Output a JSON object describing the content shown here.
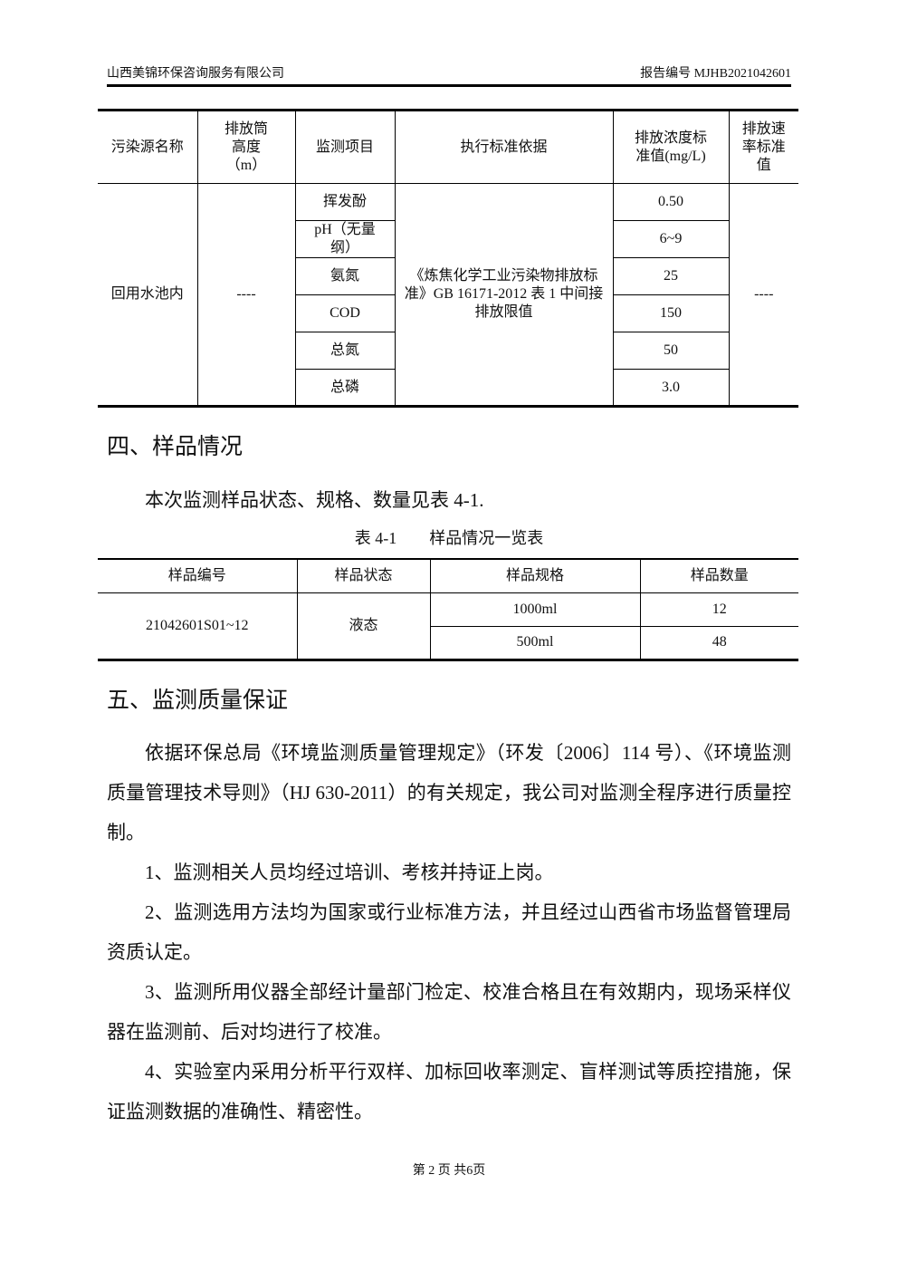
{
  "header": {
    "company": "山西美锦环保咨询服务有限公司",
    "report_no": "报告编号 MJHB2021042601"
  },
  "table1": {
    "headers": [
      "污染源名称",
      "排放筒高度（m）",
      "监测项目",
      "执行标准依据",
      "排放浓度标准值(mg/L)",
      "排放速率标准值"
    ],
    "source": "回用水池内",
    "height": "----",
    "standard": "《炼焦化学工业污染物排放标准》GB 16171-2012 表 1 中间接排放限值",
    "rate": "----",
    "rows": [
      {
        "item": "挥发酚",
        "value": "0.50"
      },
      {
        "item": "pH（无量纲）",
        "value": "6~9"
      },
      {
        "item": "氨氮",
        "value": "25"
      },
      {
        "item": "COD",
        "value": "150"
      },
      {
        "item": "总氮",
        "value": "50"
      },
      {
        "item": "总磷",
        "value": "3.0"
      }
    ]
  },
  "section4": {
    "title": "四、样品情况",
    "text": "本次监测样品状态、规格、数量见表 4-1.",
    "caption": "表 4-1　　样品情况一览表"
  },
  "table2": {
    "headers": [
      "样品编号",
      "样品状态",
      "样品规格",
      "样品数量"
    ],
    "sample_id": "21042601S01~12",
    "state": "液态",
    "rows": [
      {
        "spec": "1000ml",
        "qty": "12"
      },
      {
        "spec": "500ml",
        "qty": "48"
      }
    ]
  },
  "section5": {
    "title": "五、监测质量保证",
    "paragraphs": [
      "依据环保总局《环境监测质量管理规定》（环发〔2006〕114 号）、《环境监测质量管理技术导则》（HJ 630-2011）的有关规定，我公司对监测全程序进行质量控制。",
      "1、监测相关人员均经过培训、考核并持证上岗。",
      "2、监测选用方法均为国家或行业标准方法，并且经过山西省市场监督管理局资质认定。",
      "3、监测所用仪器全部经计量部门检定、校准合格且在有效期内，现场采样仪器在监测前、后对均进行了校准。",
      "4、实验室内采用分析平行双样、加标回收率测定、盲样测试等质控措施，保证监测数据的准确性、精密性。"
    ]
  },
  "footer": {
    "page": "第 2 页 共6页"
  }
}
